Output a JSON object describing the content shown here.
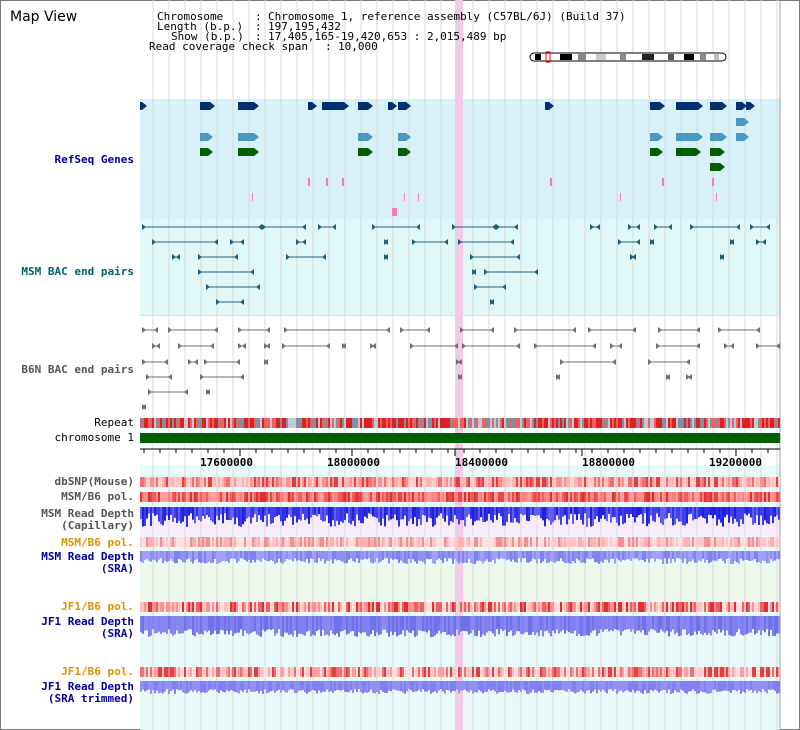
{
  "page": {
    "title": "Map View"
  },
  "info": {
    "chromosome_key": "Chromosome",
    "chromosome_value": "Chromosome 1, reference assembly (C57BL/6J) (Build 37)",
    "length_key": "Length (b.p.)",
    "length_value": "197,195,432",
    "show_key": "Show (b.p.)",
    "show_value": "17,405,165-19,420,653 : 2,015,489 bp",
    "coverage_key": "Read coverage check span",
    "coverage_value": "10,000"
  },
  "tracks": {
    "refseq": "RefSeq Genes",
    "msm_bac": "MSM BAC end pairs",
    "b6n_bac": "B6N BAC end pairs",
    "repeat": "Repeat",
    "chromosome": "chromosome 1",
    "dbsnp": "dbSNP(Mouse)",
    "msm_pol": "MSM/B6 pol.",
    "msm_depth_cap_1": "MSM Read Depth",
    "msm_depth_cap_2": "(Capillary)",
    "msm_pol_sra": "MSM/B6 pol.",
    "msm_depth_sra_1": "MSM Read Depth",
    "msm_depth_sra_2": "(SRA)",
    "jf1_pol_1": "JF1/B6 pol.",
    "jf1_depth_1": "JF1 Read Depth",
    "jf1_depth_1b": "(SRA)",
    "jf1_pol_2": "JF1/B6 pol.",
    "jf1_depth_2": "JF1 Read Depth",
    "jf1_depth_2b": "(SRA trimmed)"
  },
  "axis": {
    "ticks": [
      "17600000",
      "18000000",
      "18400000",
      "18800000",
      "19200000"
    ]
  },
  "colors": {
    "refseq_bg": "#d8f0f8",
    "bac_bg": "#e0f8f8",
    "lower_bg": "#e8fafa",
    "highlight": "#f8c8e8",
    "gene_dark": "#003070",
    "gene_mid": "#4898c0",
    "gene_green": "#006000",
    "chromosome_bar": "#006000",
    "depth_blue": "#2020e0",
    "depth_light": "#8080f0"
  }
}
